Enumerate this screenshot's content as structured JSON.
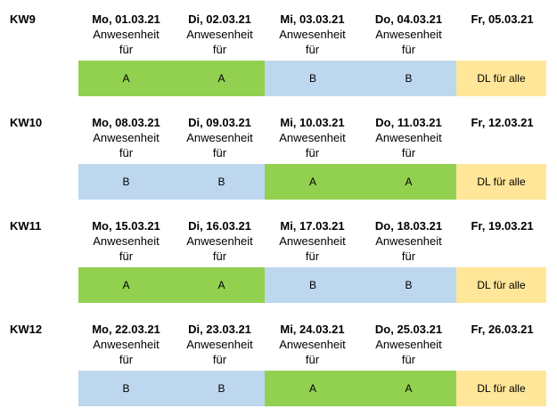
{
  "colors": {
    "A": "#92d050",
    "B": "#bdd7ee",
    "DL": "#ffe699"
  },
  "weeks": [
    {
      "label": "KW9",
      "days": [
        {
          "date": "Mo, 01.03.21",
          "line1": "Anwesenheit",
          "line2": "für",
          "group": "A",
          "color": "A"
        },
        {
          "date": "Di, 02.03.21",
          "line1": "Anwesenheit",
          "line2": "für",
          "group": "A",
          "color": "A"
        },
        {
          "date": "Mi, 03.03.21",
          "line1": "Anwesenheit",
          "line2": "für",
          "group": "B",
          "color": "B"
        },
        {
          "date": "Do, 04.03.21",
          "line1": "Anwesenheit",
          "line2": "für",
          "group": "B",
          "color": "B"
        },
        {
          "date": "Fr, 05.03.21",
          "line1": "",
          "line2": "",
          "group": "DL für alle",
          "color": "DL"
        }
      ]
    },
    {
      "label": "KW10",
      "days": [
        {
          "date": "Mo, 08.03.21",
          "line1": "Anwesenheit",
          "line2": "für",
          "group": "B",
          "color": "B"
        },
        {
          "date": "Di, 09.03.21",
          "line1": "Anwesenheit",
          "line2": "für",
          "group": "B",
          "color": "B"
        },
        {
          "date": "Mi, 10.03.21",
          "line1": "Anwesenheit",
          "line2": "für",
          "group": "A",
          "color": "A"
        },
        {
          "date": "Do, 11.03.21",
          "line1": "Anwesenheit",
          "line2": "für",
          "group": "A",
          "color": "A"
        },
        {
          "date": "Fr, 12.03.21",
          "line1": "",
          "line2": "",
          "group": "DL für alle",
          "color": "DL"
        }
      ]
    },
    {
      "label": "KW11",
      "days": [
        {
          "date": "Mo, 15.03.21",
          "line1": "Anwesenheit",
          "line2": "für",
          "group": "A",
          "color": "A"
        },
        {
          "date": "Di, 16.03.21",
          "line1": "Anwesenheit",
          "line2": "für",
          "group": "A",
          "color": "A"
        },
        {
          "date": "Mi, 17.03.21",
          "line1": "Anwesenheit",
          "line2": "für",
          "group": "B",
          "color": "B"
        },
        {
          "date": "Do, 18.03.21",
          "line1": "Anwesenheit",
          "line2": "für",
          "group": "B",
          "color": "B"
        },
        {
          "date": "Fr, 19.03.21",
          "line1": "",
          "line2": "",
          "group": "DL für alle",
          "color": "DL"
        }
      ]
    },
    {
      "label": "KW12",
      "days": [
        {
          "date": "Mo, 22.03.21",
          "line1": "Anwesenheit",
          "line2": "für",
          "group": "B",
          "color": "B"
        },
        {
          "date": "Di, 23.03.21",
          "line1": "Anwesenheit",
          "line2": "für",
          "group": "B",
          "color": "B"
        },
        {
          "date": "Mi, 24.03.21",
          "line1": "Anwesenheit",
          "line2": "für",
          "group": "A",
          "color": "A"
        },
        {
          "date": "Do, 25.03.21",
          "line1": "Anwesenheit",
          "line2": "für",
          "group": "A",
          "color": "A"
        },
        {
          "date": "Fr, 26.03.21",
          "line1": "",
          "line2": "",
          "group": "DL für alle",
          "color": "DL"
        }
      ]
    }
  ]
}
